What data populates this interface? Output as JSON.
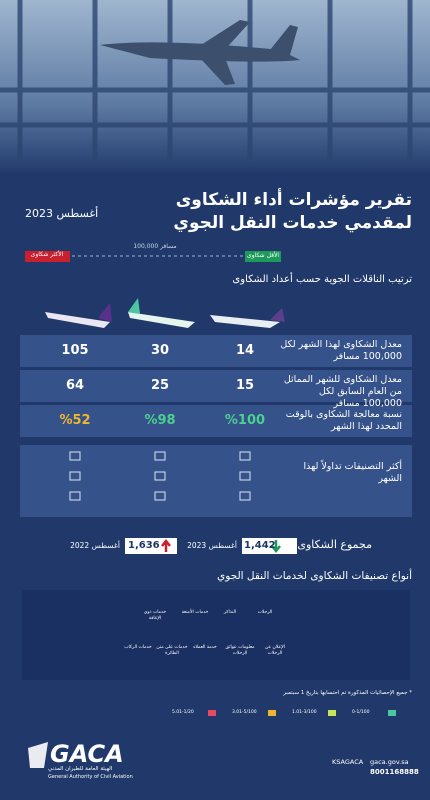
{
  "header": {
    "title_line1": "تقرير مؤشرات أداء الشكاوى",
    "title_line2": "لمقدمي خدمات النقل الجوي",
    "date": "أغسطس 2023"
  },
  "scale": {
    "least": "الأقل شكاوى",
    "per": "100,000 مسافر",
    "most": "الأكثر شكاوى"
  },
  "ranking": {
    "title": "ترتيب الناقلات الجوية حسب أعداد الشكاوى",
    "rows": [
      {
        "label": "معدل الشكاوى لهذا الشهر لكل 100,000 مسافر",
        "values": [
          "14",
          "30",
          "105"
        ]
      },
      {
        "label": "معدل الشكاوى للشهر المماثل من العام السابق لكل 100,000 مسافر",
        "values": [
          "15",
          "25",
          "64"
        ]
      },
      {
        "label": "نسبة معالجة الشكاوى بالوقت المحدد لهذا الشهر",
        "values": [
          "%100",
          "%98",
          "%52"
        ]
      }
    ],
    "top_categories_label": "أكثر التصنيفات تداولاً لهذا الشهر"
  },
  "totals": {
    "label": "مجموع الشكاوى",
    "current": {
      "value": "1,442",
      "period": "أغسطس 2023"
    },
    "previous": {
      "value": "1,636",
      "period": "أغسطس 2022"
    }
  },
  "complaint_types": {
    "title": "أنواع تصنيفات الشكاوى لخدمات النقل الجوي",
    "items": [
      "الرحلات",
      "التذاكر",
      "خدمات الأمتعة",
      "خدمات ذوي الإعاقة",
      "الإعلان عن الرحلات",
      "معلومات عوائق الرحلات",
      "خدمة العملاء",
      "خدمات على متن الطائرة",
      "خدمات الركاب"
    ]
  },
  "footnote": "* جميع الإحصائيات المذكورة تم احتسابها بتاريخ 1 سبتمبر",
  "legend": [
    "0-1/100",
    "1.01-3/100",
    "3.01-5/100",
    "5.01-1/20"
  ],
  "footer": {
    "logo": "GACA",
    "org_ar": "الهيئة العامة للطيران المدني",
    "org_en": "General Authority of Civil Aviation",
    "social": "KSAGACA",
    "site": "gaca.gov.sa",
    "phone": "8001168888"
  }
}
